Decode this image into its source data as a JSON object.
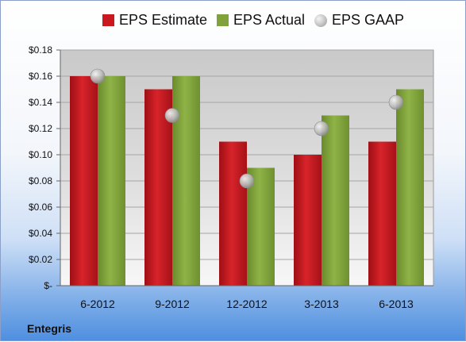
{
  "company": "Entegris",
  "colors": {
    "estimate": "#c9191f",
    "actual": "#7fa23a",
    "gaap": "#b8b8b8"
  },
  "chart_data": {
    "type": "bar",
    "categories": [
      "6-2012",
      "9-2012",
      "12-2012",
      "3-2013",
      "6-2013"
    ],
    "series": [
      {
        "name": "EPS Estimate",
        "kind": "bar",
        "values": [
          0.16,
          0.15,
          0.11,
          0.1,
          0.11
        ]
      },
      {
        "name": "EPS Actual",
        "kind": "bar",
        "values": [
          0.16,
          0.16,
          0.09,
          0.13,
          0.15
        ]
      },
      {
        "name": "EPS GAAP",
        "kind": "bubble",
        "values": [
          0.16,
          0.13,
          0.08,
          0.12,
          0.14
        ]
      }
    ],
    "ylim": [
      0,
      0.18
    ],
    "yticks": [
      0,
      0.02,
      0.04,
      0.06,
      0.08,
      0.1,
      0.12,
      0.14,
      0.16,
      0.18
    ],
    "ytick_labels": [
      "$-",
      "$0.02",
      "$0.04",
      "$0.06",
      "$0.08",
      "$0.10",
      "$0.12",
      "$0.14",
      "$0.16",
      "$0.18"
    ],
    "legend_position": "top",
    "grid": true
  }
}
